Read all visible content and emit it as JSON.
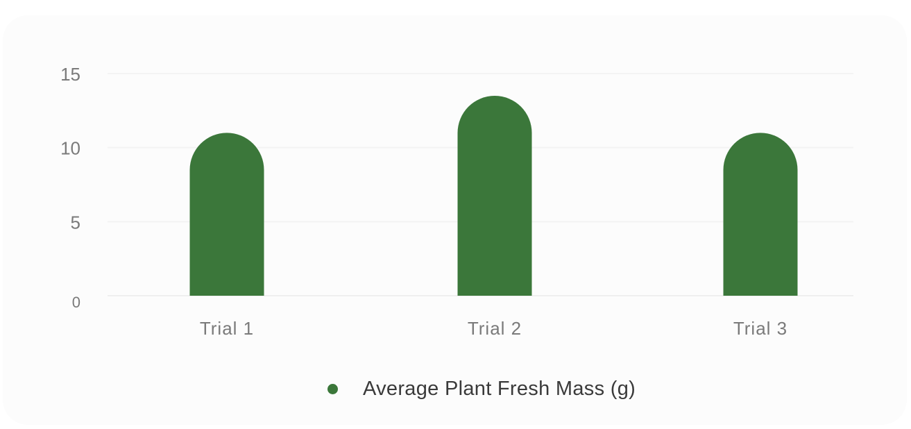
{
  "chart_data": {
    "type": "bar",
    "categories": [
      "Trial 1",
      "Trial 2",
      "Trial 3"
    ],
    "series": [
      {
        "name": "Average Plant Fresh Mass (g)",
        "values": [
          11,
          13.5,
          11
        ],
        "color": "#3b773a"
      }
    ],
    "ylim": [
      0,
      15
    ],
    "yticks": [
      0,
      5,
      10,
      15
    ],
    "grid": true,
    "legend_position": "bottom",
    "bar_style": "rounded-top"
  }
}
